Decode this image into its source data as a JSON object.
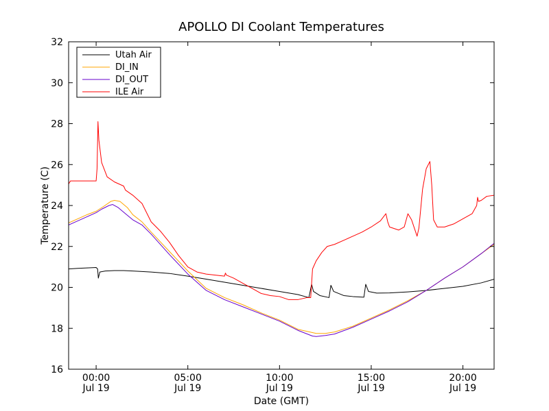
{
  "chart_data": {
    "type": "line",
    "title": "APOLLO DI Coolant Temperatures",
    "xlabel": "Date (GMT)",
    "ylabel": "Temperature (C)",
    "xlim": [
      -1.5,
      21.7
    ],
    "ylim": [
      16,
      32
    ],
    "legend_position": "top-left",
    "grid": false,
    "y_ticks": [
      16,
      18,
      20,
      22,
      24,
      26,
      28,
      30,
      32
    ],
    "x_ticks": [
      {
        "value": 0,
        "time": "00:00",
        "date": "Jul 19"
      },
      {
        "value": 5,
        "time": "05:00",
        "date": "Jul 19"
      },
      {
        "value": 10,
        "time": "10:00",
        "date": "Jul 19"
      },
      {
        "value": 15,
        "time": "15:00",
        "date": "Jul 19"
      },
      {
        "value": 20,
        "time": "20:00",
        "date": "Jul 19"
      }
    ],
    "series": [
      {
        "name": "Utah Air",
        "color": "#000000",
        "points": [
          [
            -1.5,
            20.9
          ],
          [
            -1.0,
            20.93
          ],
          [
            -0.5,
            20.95
          ],
          [
            0.0,
            20.97
          ],
          [
            0.08,
            20.9
          ],
          [
            0.12,
            20.45
          ],
          [
            0.2,
            20.75
          ],
          [
            0.5,
            20.8
          ],
          [
            1.0,
            20.82
          ],
          [
            1.5,
            20.82
          ],
          [
            2.0,
            20.8
          ],
          [
            3.0,
            20.75
          ],
          [
            4.0,
            20.68
          ],
          [
            5.0,
            20.55
          ],
          [
            6.0,
            20.4
          ],
          [
            7.0,
            20.25
          ],
          [
            8.0,
            20.1
          ],
          [
            9.0,
            19.95
          ],
          [
            10.0,
            19.8
          ],
          [
            11.0,
            19.65
          ],
          [
            11.6,
            19.5
          ],
          [
            11.75,
            20.15
          ],
          [
            11.85,
            19.8
          ],
          [
            12.2,
            19.6
          ],
          [
            12.7,
            19.5
          ],
          [
            12.8,
            20.1
          ],
          [
            12.95,
            19.8
          ],
          [
            13.5,
            19.6
          ],
          [
            14.0,
            19.55
          ],
          [
            14.6,
            19.52
          ],
          [
            14.7,
            20.15
          ],
          [
            14.85,
            19.8
          ],
          [
            15.3,
            19.72
          ],
          [
            16.0,
            19.73
          ],
          [
            17.0,
            19.78
          ],
          [
            18.0,
            19.85
          ],
          [
            19.0,
            19.95
          ],
          [
            20.0,
            20.05
          ],
          [
            21.0,
            20.22
          ],
          [
            21.7,
            20.4
          ]
        ]
      },
      {
        "name": "DI_IN",
        "color": "#ffa500",
        "points": [
          [
            -1.5,
            23.15
          ],
          [
            -1.0,
            23.35
          ],
          [
            -0.5,
            23.55
          ],
          [
            0.0,
            23.72
          ],
          [
            0.4,
            23.95
          ],
          [
            0.8,
            24.2
          ],
          [
            1.0,
            24.25
          ],
          [
            1.3,
            24.2
          ],
          [
            1.7,
            23.9
          ],
          [
            2.0,
            23.55
          ],
          [
            2.5,
            23.2
          ],
          [
            3.0,
            22.7
          ],
          [
            4.0,
            21.75
          ],
          [
            5.0,
            20.8
          ],
          [
            6.0,
            19.95
          ],
          [
            7.0,
            19.5
          ],
          [
            8.0,
            19.15
          ],
          [
            9.0,
            18.75
          ],
          [
            10.0,
            18.4
          ],
          [
            11.0,
            17.95
          ],
          [
            12.0,
            17.75
          ],
          [
            12.5,
            17.75
          ],
          [
            13.0,
            17.82
          ],
          [
            14.0,
            18.1
          ],
          [
            15.0,
            18.5
          ],
          [
            16.0,
            18.9
          ],
          [
            17.0,
            19.35
          ],
          [
            18.0,
            19.85
          ],
          [
            19.0,
            20.45
          ],
          [
            20.0,
            21.0
          ],
          [
            21.0,
            21.65
          ],
          [
            21.7,
            22.1
          ]
        ]
      },
      {
        "name": "DI_OUT",
        "color": "#6600cc",
        "points": [
          [
            -1.5,
            23.05
          ],
          [
            -1.0,
            23.25
          ],
          [
            -0.5,
            23.45
          ],
          [
            0.0,
            23.65
          ],
          [
            0.3,
            23.82
          ],
          [
            0.7,
            24.0
          ],
          [
            0.9,
            24.05
          ],
          [
            1.2,
            23.9
          ],
          [
            1.6,
            23.6
          ],
          [
            2.0,
            23.3
          ],
          [
            2.5,
            23.05
          ],
          [
            3.0,
            22.6
          ],
          [
            4.0,
            21.6
          ],
          [
            5.0,
            20.65
          ],
          [
            6.0,
            19.85
          ],
          [
            7.0,
            19.4
          ],
          [
            8.0,
            19.05
          ],
          [
            9.0,
            18.7
          ],
          [
            10.0,
            18.35
          ],
          [
            11.0,
            17.9
          ],
          [
            11.8,
            17.62
          ],
          [
            12.0,
            17.6
          ],
          [
            12.5,
            17.65
          ],
          [
            13.0,
            17.72
          ],
          [
            14.0,
            18.05
          ],
          [
            15.0,
            18.45
          ],
          [
            16.0,
            18.85
          ],
          [
            17.0,
            19.3
          ],
          [
            18.0,
            19.85
          ],
          [
            19.0,
            20.45
          ],
          [
            20.0,
            21.0
          ],
          [
            21.0,
            21.65
          ],
          [
            21.7,
            22.15
          ]
        ]
      },
      {
        "name": "ILE Air",
        "color": "#ff0000",
        "points": [
          [
            -1.5,
            25.05
          ],
          [
            -1.4,
            25.2
          ],
          [
            -1.0,
            25.2
          ],
          [
            -0.5,
            25.2
          ],
          [
            0.0,
            25.2
          ],
          [
            0.05,
            25.8
          ],
          [
            0.1,
            28.1
          ],
          [
            0.15,
            27.2
          ],
          [
            0.3,
            26.1
          ],
          [
            0.6,
            25.4
          ],
          [
            1.0,
            25.15
          ],
          [
            1.5,
            24.95
          ],
          [
            1.6,
            24.75
          ],
          [
            2.0,
            24.5
          ],
          [
            2.5,
            24.1
          ],
          [
            3.0,
            23.2
          ],
          [
            3.5,
            22.75
          ],
          [
            4.0,
            22.2
          ],
          [
            4.5,
            21.55
          ],
          [
            5.0,
            21.0
          ],
          [
            5.5,
            20.75
          ],
          [
            6.0,
            20.65
          ],
          [
            6.5,
            20.6
          ],
          [
            7.0,
            20.55
          ],
          [
            7.05,
            20.7
          ],
          [
            7.1,
            20.6
          ],
          [
            7.5,
            20.45
          ],
          [
            8.0,
            20.2
          ],
          [
            8.5,
            19.95
          ],
          [
            9.0,
            19.7
          ],
          [
            9.5,
            19.6
          ],
          [
            10.0,
            19.55
          ],
          [
            10.5,
            19.4
          ],
          [
            11.0,
            19.4
          ],
          [
            11.5,
            19.5
          ],
          [
            11.7,
            19.5
          ],
          [
            11.8,
            20.9
          ],
          [
            12.0,
            21.3
          ],
          [
            12.3,
            21.7
          ],
          [
            12.6,
            22.0
          ],
          [
            13.0,
            22.1
          ],
          [
            13.5,
            22.3
          ],
          [
            14.0,
            22.5
          ],
          [
            14.5,
            22.7
          ],
          [
            15.0,
            22.95
          ],
          [
            15.5,
            23.25
          ],
          [
            15.8,
            23.6
          ],
          [
            15.9,
            23.2
          ],
          [
            16.0,
            22.95
          ],
          [
            16.5,
            22.8
          ],
          [
            16.8,
            22.95
          ],
          [
            17.0,
            23.6
          ],
          [
            17.2,
            23.3
          ],
          [
            17.5,
            22.5
          ],
          [
            17.6,
            22.9
          ],
          [
            17.8,
            24.8
          ],
          [
            18.0,
            25.8
          ],
          [
            18.2,
            26.15
          ],
          [
            18.3,
            25.0
          ],
          [
            18.4,
            23.3
          ],
          [
            18.6,
            22.95
          ],
          [
            19.0,
            22.95
          ],
          [
            19.5,
            23.1
          ],
          [
            20.0,
            23.35
          ],
          [
            20.5,
            23.6
          ],
          [
            20.75,
            24.0
          ],
          [
            20.8,
            24.4
          ],
          [
            20.85,
            24.2
          ],
          [
            21.0,
            24.25
          ],
          [
            21.3,
            24.45
          ],
          [
            21.7,
            24.5
          ]
        ]
      }
    ]
  }
}
